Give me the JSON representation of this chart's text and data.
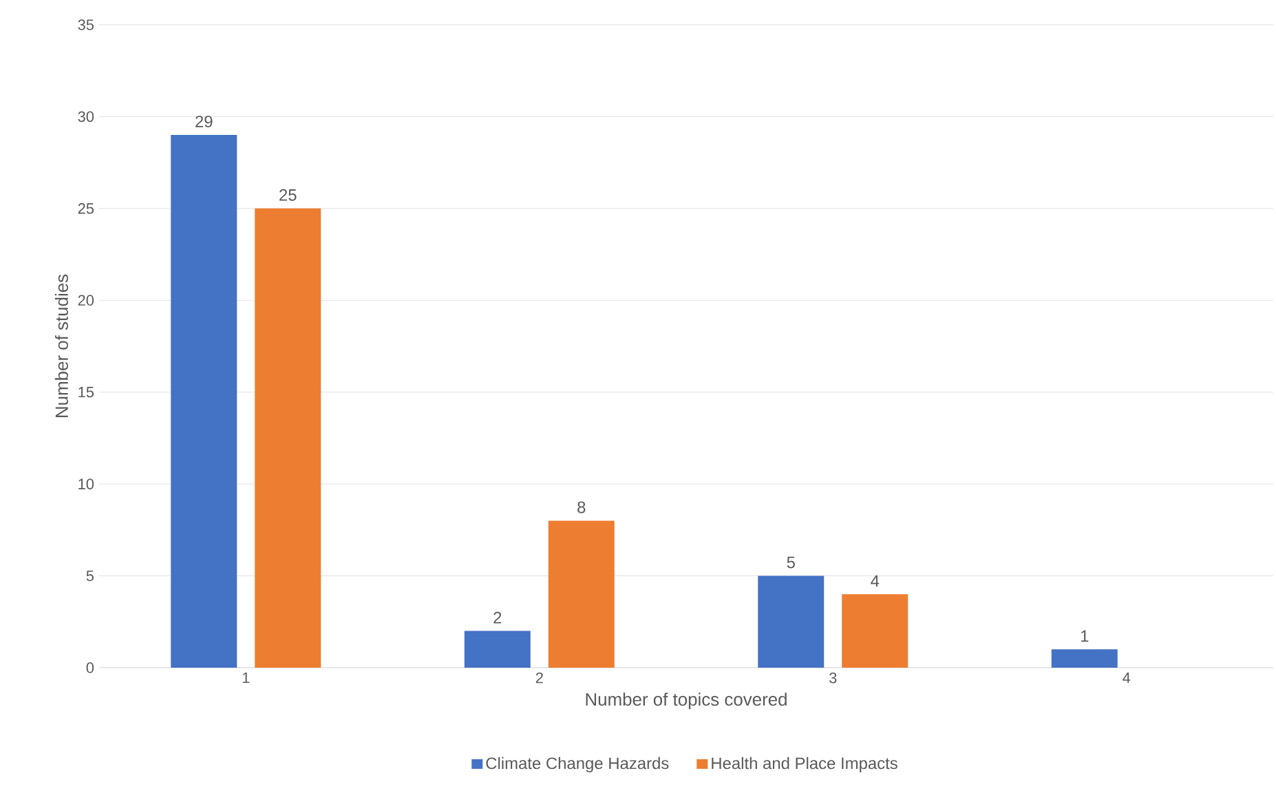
{
  "chart_data": {
    "type": "bar",
    "xlabel": "Number of topics covered",
    "ylabel": "Number of studies",
    "categories": [
      "1",
      "2",
      "3",
      "4"
    ],
    "series": [
      {
        "name": "Climate Change Hazards",
        "color": "#4472c4",
        "values": [
          29,
          2,
          5,
          1
        ]
      },
      {
        "name": "Health and Place Impacts",
        "color": "#ed7d31",
        "values": [
          25,
          8,
          4,
          null
        ]
      }
    ],
    "ylim": [
      0,
      35
    ],
    "yticks": [
      0,
      5,
      10,
      15,
      20,
      25,
      30,
      35
    ],
    "grid": "y",
    "legend": "bottom",
    "data_labels": true
  }
}
